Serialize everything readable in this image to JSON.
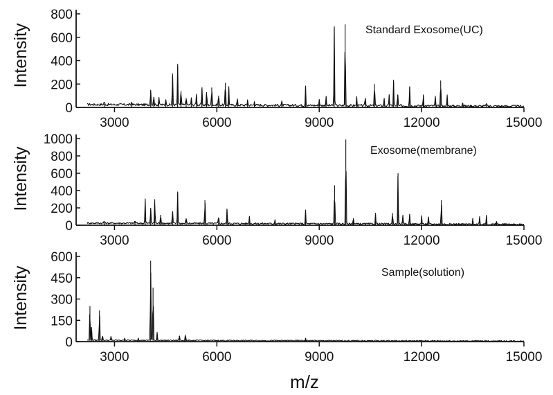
{
  "figure": {
    "xlabel": "m/z"
  },
  "chart_data": [
    {
      "type": "line",
      "title": "Standard Exosome(UC)",
      "ylabel": "Intensity",
      "xlim": [
        2200,
        15000
      ],
      "ylim": [
        0,
        800
      ],
      "xticks": [
        3000,
        6000,
        9000,
        12000,
        15000
      ],
      "yticks": [
        0,
        200,
        400,
        600,
        800
      ],
      "baseline": 25,
      "peaks": [
        [
          2700,
          30
        ],
        [
          3500,
          25
        ],
        [
          4060,
          150
        ],
        [
          4150,
          90
        ],
        [
          4300,
          70
        ],
        [
          4500,
          60
        ],
        [
          4700,
          290
        ],
        [
          4850,
          350
        ],
        [
          4950,
          140
        ],
        [
          5100,
          80
        ],
        [
          5250,
          70
        ],
        [
          5400,
          100
        ],
        [
          5560,
          160
        ],
        [
          5700,
          130
        ],
        [
          5850,
          170
        ],
        [
          6050,
          100
        ],
        [
          6250,
          210
        ],
        [
          6350,
          160
        ],
        [
          6600,
          60
        ],
        [
          6900,
          50
        ],
        [
          7100,
          40
        ],
        [
          7900,
          35
        ],
        [
          8600,
          175
        ],
        [
          9000,
          55
        ],
        [
          9200,
          90
        ],
        [
          9440,
          675
        ],
        [
          9760,
          710
        ],
        [
          10100,
          70
        ],
        [
          10350,
          80
        ],
        [
          10620,
          200
        ],
        [
          10900,
          65
        ],
        [
          11050,
          100
        ],
        [
          11180,
          220
        ],
        [
          11300,
          110
        ],
        [
          11650,
          180
        ],
        [
          12050,
          110
        ],
        [
          12400,
          80
        ],
        [
          12560,
          230
        ],
        [
          12750,
          90
        ],
        [
          13200,
          40
        ],
        [
          13900,
          30
        ]
      ]
    },
    {
      "type": "line",
      "title": "Exosome(membrane)",
      "ylabel": "Intensity",
      "xlim": [
        2200,
        15000
      ],
      "ylim": [
        0,
        1000
      ],
      "xticks": [
        3000,
        6000,
        9000,
        12000,
        15000
      ],
      "yticks": [
        0,
        200,
        400,
        600,
        800,
        1000
      ],
      "baseline": 25,
      "peaks": [
        [
          2700,
          30
        ],
        [
          3600,
          40
        ],
        [
          3900,
          280
        ],
        [
          4060,
          200
        ],
        [
          4180,
          300
        ],
        [
          4350,
          120
        ],
        [
          4700,
          160
        ],
        [
          4850,
          370
        ],
        [
          5100,
          80
        ],
        [
          5650,
          290
        ],
        [
          6050,
          90
        ],
        [
          6300,
          180
        ],
        [
          6950,
          90
        ],
        [
          7700,
          50
        ],
        [
          8600,
          150
        ],
        [
          9450,
          460
        ],
        [
          9780,
          990
        ],
        [
          10000,
          80
        ],
        [
          10650,
          120
        ],
        [
          11150,
          140
        ],
        [
          11310,
          600
        ],
        [
          11450,
          100
        ],
        [
          11650,
          130
        ],
        [
          12000,
          100
        ],
        [
          12200,
          80
        ],
        [
          12580,
          290
        ],
        [
          13500,
          60
        ],
        [
          13700,
          80
        ],
        [
          13900,
          110
        ],
        [
          14200,
          40
        ]
      ]
    },
    {
      "type": "line",
      "title": "Sample(solution)",
      "ylabel": "Intensity",
      "xlim": [
        2200,
        15000
      ],
      "ylim": [
        0,
        600
      ],
      "xticks": [
        3000,
        6000,
        9000,
        12000,
        15000
      ],
      "yticks": [
        0,
        150,
        300,
        450,
        600
      ],
      "baseline": 10,
      "peaks": [
        [
          2280,
          250
        ],
        [
          2330,
          90
        ],
        [
          2560,
          220
        ],
        [
          2650,
          40
        ],
        [
          2900,
          30
        ],
        [
          3300,
          20
        ],
        [
          3700,
          20
        ],
        [
          4060,
          570
        ],
        [
          4130,
          380
        ],
        [
          4250,
          60
        ],
        [
          4900,
          40
        ],
        [
          5080,
          50
        ],
        [
          8600,
          15
        ]
      ]
    }
  ]
}
